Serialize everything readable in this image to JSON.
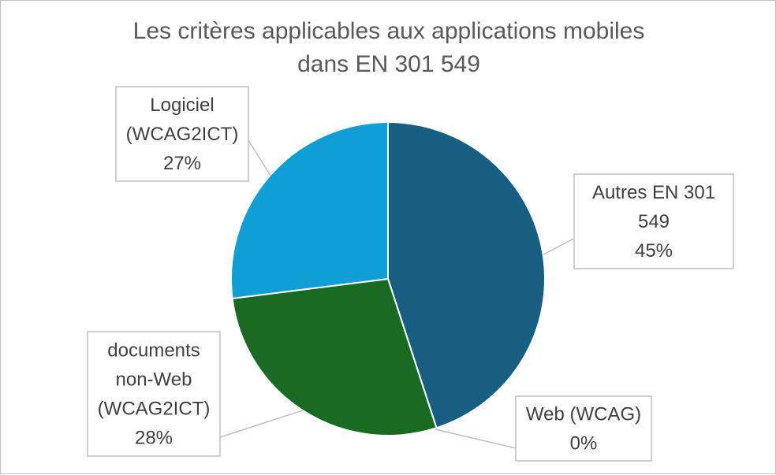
{
  "chart_data": {
    "type": "pie",
    "title_lines": [
      "Les critères applicables aux applications mobiles",
      "dans EN 301 549"
    ],
    "slices": [
      {
        "label_lines": [
          "Autres EN 301",
          "549"
        ],
        "percent_label": "45%",
        "value": 45,
        "color": "#175f82"
      },
      {
        "label_lines": [
          "Web (WCAG)"
        ],
        "percent_label": "0%",
        "value": 0,
        "color": "#e97132"
      },
      {
        "label_lines": [
          "documents",
          "non-Web",
          "(WCAG2ICT)"
        ],
        "percent_label": "28%",
        "value": 28,
        "color": "#196b24"
      },
      {
        "label_lines": [
          "Logiciel",
          "(WCAG2ICT)"
        ],
        "percent_label": "27%",
        "value": 27,
        "color": "#0f9ed5"
      }
    ],
    "start_angle_deg": 0,
    "direction": "clockwise",
    "data_labels": "callouts with category name and percentage",
    "legend": "none"
  }
}
